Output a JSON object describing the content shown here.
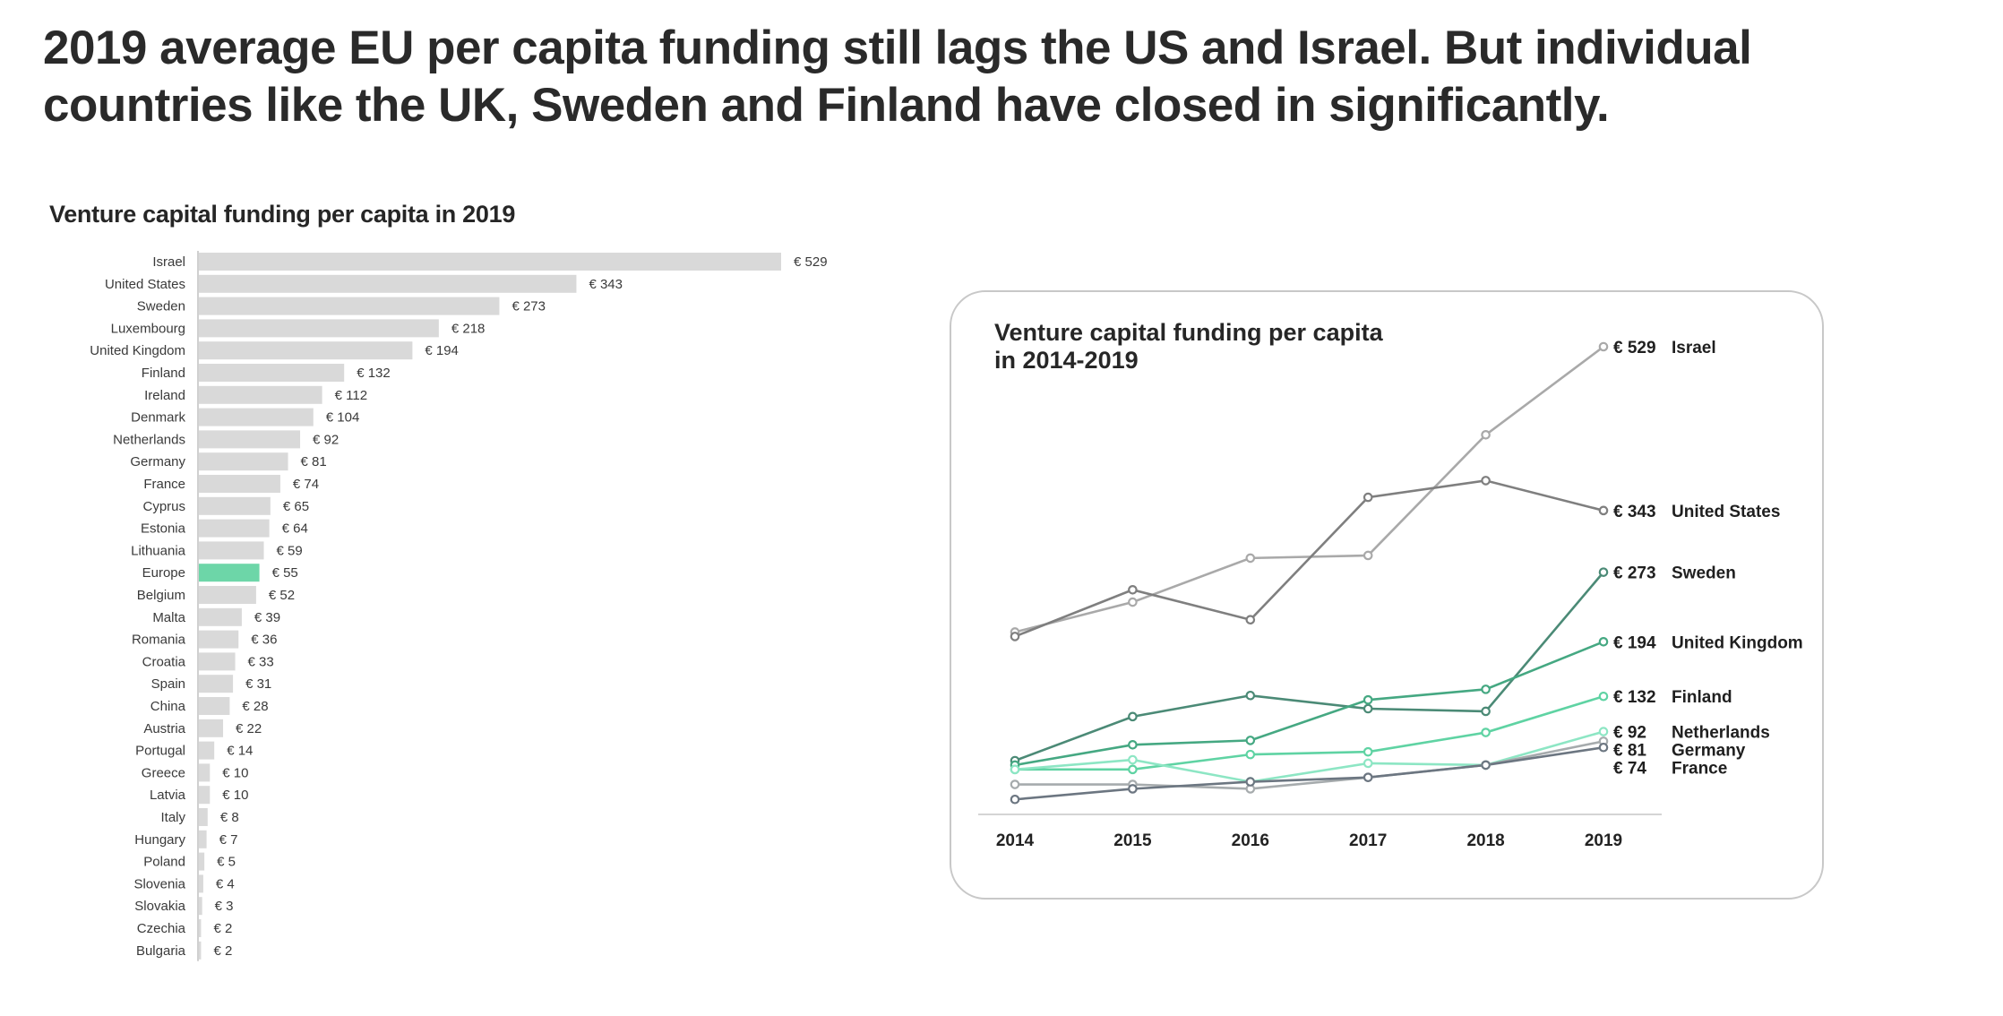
{
  "headline": {
    "line1": "2019 average EU per capita funding still lags the US and Israel. But individual",
    "line2": "countries like the UK, Sweden and Finland have closed in significantly."
  },
  "colors": {
    "bar_default": "#d9d9d9",
    "bar_highlight": "#6dd6a8",
    "text": "#2b2b2b"
  },
  "chart_data": [
    {
      "type": "bar",
      "orientation": "horizontal",
      "title": "Venture capital funding per capita in 2019",
      "xlabel": "",
      "ylabel": "",
      "value_prefix": "€ ",
      "highlight": "Europe",
      "categories": [
        "Israel",
        "United States",
        "Sweden",
        "Luxembourg",
        "United Kingdom",
        "Finland",
        "Ireland",
        "Denmark",
        "Netherlands",
        "Germany",
        "France",
        "Cyprus",
        "Estonia",
        "Lithuania",
        "Europe",
        "Belgium",
        "Malta",
        "Romania",
        "Croatia",
        "Spain",
        "China",
        "Austria",
        "Portugal",
        "Greece",
        "Latvia",
        "Italy",
        "Hungary",
        "Poland",
        "Slovenia",
        "Slovakia",
        "Czechia",
        "Bulgaria"
      ],
      "values": [
        529,
        343,
        273,
        218,
        194,
        132,
        112,
        104,
        92,
        81,
        74,
        65,
        64,
        59,
        55,
        52,
        39,
        36,
        33,
        31,
        28,
        22,
        14,
        10,
        10,
        8,
        7,
        5,
        4,
        3,
        2,
        2
      ],
      "xlim": [
        0,
        529
      ],
      "grid": false
    },
    {
      "type": "line",
      "title": "Venture capital funding per capita in 2014-2019",
      "title_lines": [
        "Venture capital funding per capita",
        "in 2014-2019"
      ],
      "x": [
        "2014",
        "2015",
        "2016",
        "2017",
        "2018",
        "2019"
      ],
      "value_prefix": "€ ",
      "ylim": [
        0,
        540
      ],
      "grid": false,
      "legend": "right-end labels",
      "series": [
        {
          "name": "Israel",
          "color": "#a9a9a9",
          "values": [
            205,
            239,
            289,
            292,
            429,
            529
          ],
          "end_label": "€ 529"
        },
        {
          "name": "United States",
          "color": "#7f7f7f",
          "values": [
            200,
            253,
            219,
            358,
            377,
            343
          ],
          "end_label": "€ 343"
        },
        {
          "name": "Sweden",
          "color": "#4b8a76",
          "values": [
            59,
            109,
            133,
            118,
            115,
            273
          ],
          "end_label": "€ 273"
        },
        {
          "name": "United Kingdom",
          "color": "#45a882",
          "values": [
            54,
            77,
            82,
            128,
            140,
            194
          ],
          "end_label": "€ 194"
        },
        {
          "name": "Finland",
          "color": "#5fd3a3",
          "values": [
            49,
            49,
            66,
            69,
            91,
            132
          ],
          "end_label": "€ 132"
        },
        {
          "name": "Netherlands",
          "color": "#8de6c4",
          "values": [
            49,
            60,
            35,
            56,
            54,
            92
          ],
          "end_label": "€ 92"
        },
        {
          "name": "Germany",
          "color": "#a6abad",
          "values": [
            32,
            32,
            27,
            40,
            54,
            81
          ],
          "end_label": "€ 81"
        },
        {
          "name": "France",
          "color": "#6c7681",
          "values": [
            15,
            27,
            35,
            40,
            54,
            74
          ],
          "end_label": "€ 74"
        }
      ]
    }
  ]
}
